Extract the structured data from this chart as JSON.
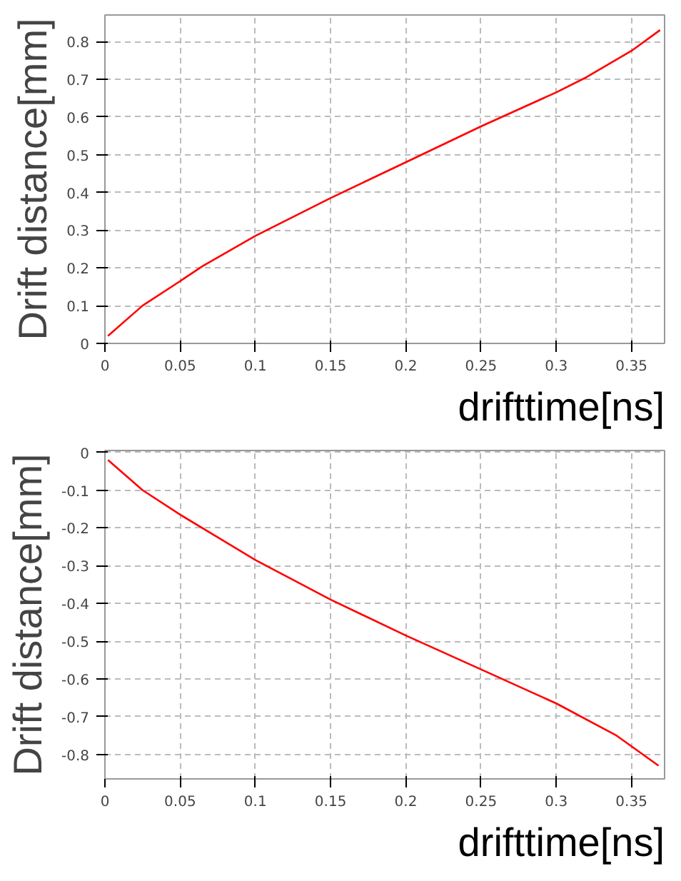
{
  "chart_data": [
    {
      "type": "line",
      "xlabel": "drifttime[ns]",
      "ylabel": "Drift distance[mm]",
      "xlim": [
        0,
        0.372
      ],
      "ylim": [
        0,
        0.87
      ],
      "xticks": [
        0,
        0.05,
        0.1,
        0.15,
        0.2,
        0.25,
        0.3,
        0.35
      ],
      "yticks": [
        0,
        0.1,
        0.2,
        0.3,
        0.4,
        0.5,
        0.6,
        0.7,
        0.8
      ],
      "grid": true,
      "line_style": "solid",
      "series": [
        {
          "color": "#ff0000",
          "x": [
            0.002,
            0.025,
            0.05,
            0.065,
            0.1,
            0.15,
            0.2,
            0.25,
            0.3,
            0.32,
            0.35,
            0.369
          ],
          "values": [
            0.02,
            0.1,
            0.165,
            0.205,
            0.285,
            0.385,
            0.48,
            0.575,
            0.665,
            0.705,
            0.775,
            0.83
          ]
        }
      ]
    },
    {
      "type": "line",
      "xlabel": "drifttime[ns]",
      "ylabel": "Drift distance[mm]",
      "xlim": [
        0,
        0.372
      ],
      "ylim": [
        -0.865,
        0.005
      ],
      "xticks": [
        0,
        0.05,
        0.1,
        0.15,
        0.2,
        0.25,
        0.3,
        0.35
      ],
      "yticks": [
        -0.8,
        -0.7,
        -0.6,
        -0.5,
        -0.4,
        -0.3,
        -0.2,
        -0.1,
        0
      ],
      "grid": true,
      "line_style": "solid",
      "series": [
        {
          "color": "#ff0000",
          "x": [
            0.002,
            0.025,
            0.05,
            0.1,
            0.15,
            0.2,
            0.25,
            0.3,
            0.34,
            0.368
          ],
          "values": [
            -0.02,
            -0.1,
            -0.165,
            -0.285,
            -0.39,
            -0.485,
            -0.575,
            -0.665,
            -0.75,
            -0.83
          ]
        }
      ]
    }
  ]
}
